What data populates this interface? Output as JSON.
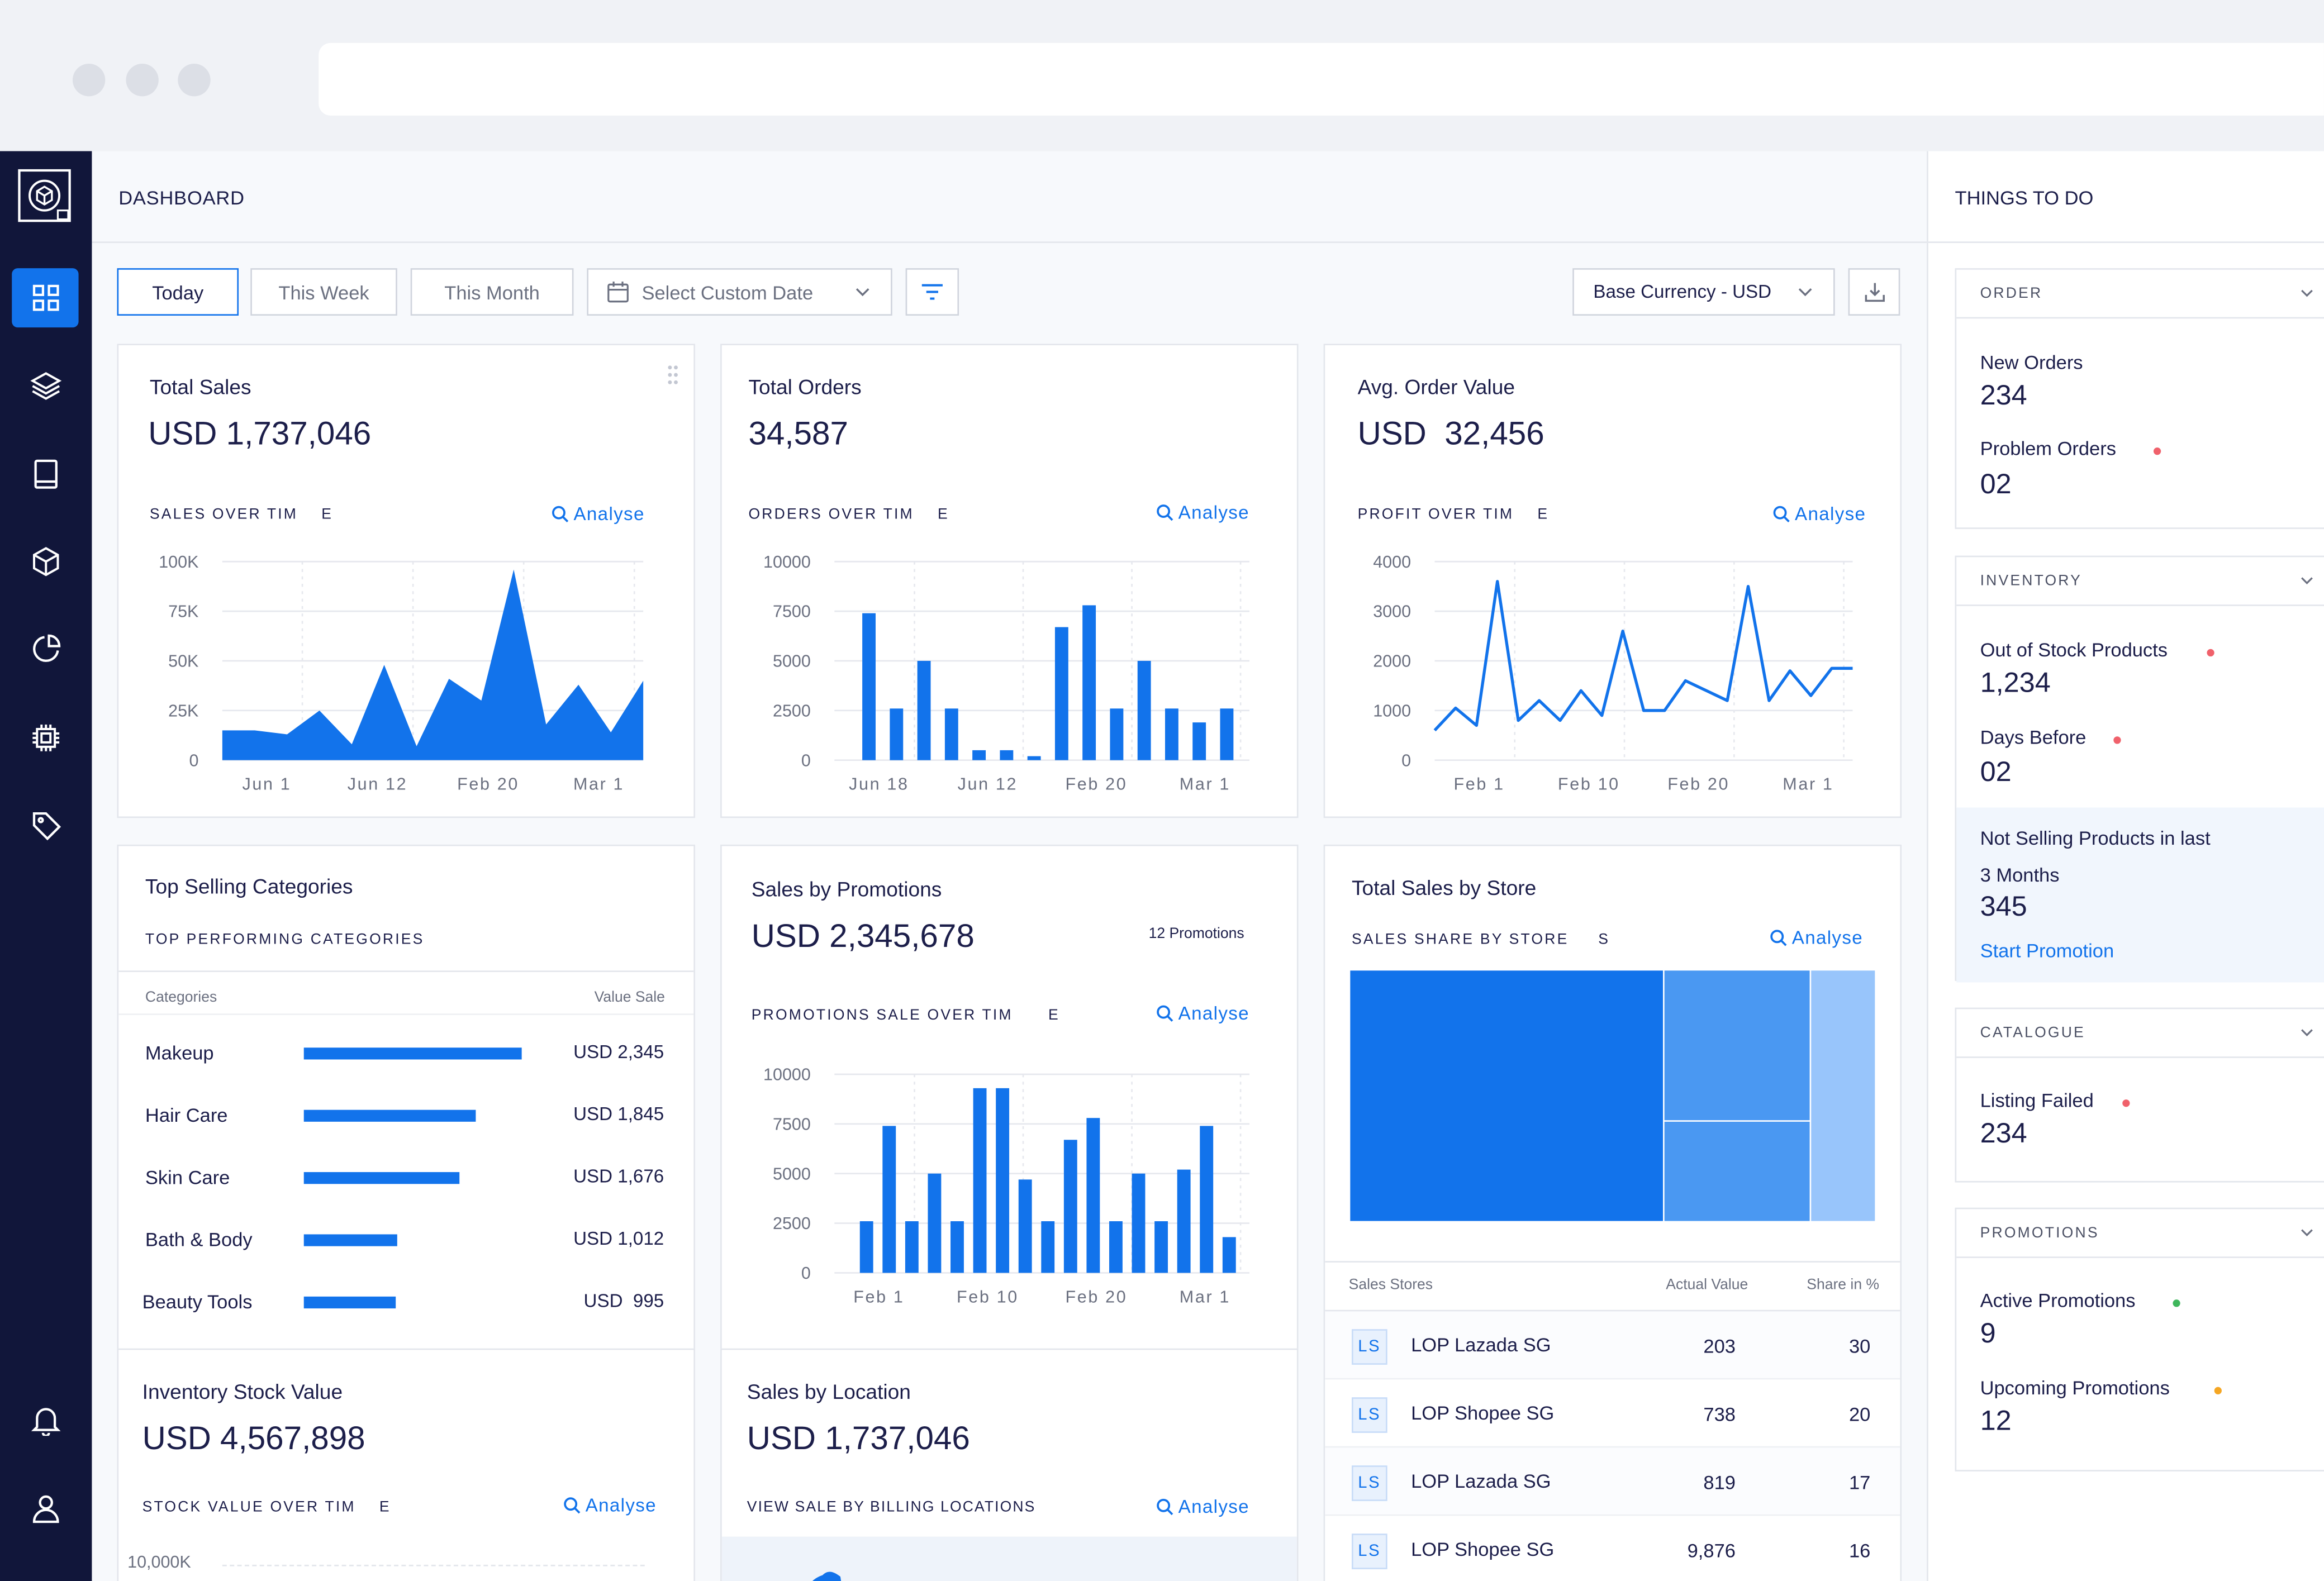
{
  "header": {
    "title": "DASHBOARD",
    "right_title": "THINGS TO DO"
  },
  "filters": {
    "today": "Today",
    "this_week": "This Week",
    "this_month": "This Month",
    "custom_date": "Select Custom Date",
    "currency": "Base Currency - USD"
  },
  "colors": {
    "accent": "#1273eb",
    "sidebar": "#11163a",
    "light_blue": "#4a98f2",
    "pale_blue": "#98c5fb"
  },
  "analyse_label": "Analyse",
  "total_sales": {
    "title": "Total Sales",
    "value": "USD 1,737,046",
    "caption": "SALES OVER TIM    E",
    "chart_data": {
      "type": "area",
      "y_ticks": [
        "100K",
        "75K",
        "50K",
        "25K",
        "0"
      ],
      "ylim": [
        0,
        100000
      ],
      "x_ticks": [
        "Jun 1",
        "Jun 12",
        "Feb 20",
        "Mar  1"
      ],
      "values": [
        15000,
        15000,
        13000,
        25000,
        8000,
        48000,
        7000,
        41000,
        30000,
        96000,
        18000,
        38000,
        14000,
        40000
      ]
    }
  },
  "total_orders": {
    "title": "Total Orders",
    "value": "34,587",
    "caption": "ORDERS OVER TIM    E",
    "chart_data": {
      "type": "bar",
      "y_ticks": [
        "10000",
        "7500",
        "5000",
        "2500",
        "0"
      ],
      "ylim": [
        0,
        10000
      ],
      "x_ticks": [
        "Jun 18",
        "Jun 12",
        "Feb 20",
        "Mar  1"
      ],
      "values": [
        7400,
        2600,
        5000,
        2600,
        500,
        500,
        200,
        6700,
        7800,
        2600,
        5000,
        2600,
        1900,
        2600
      ]
    }
  },
  "avg_order": {
    "title": "Avg. Order Value",
    "value": "USD  32,456",
    "caption": "PROFIT OVER TIM    E",
    "chart_data": {
      "type": "line",
      "y_ticks": [
        "4000",
        "3000",
        "2000",
        "1000",
        "0"
      ],
      "ylim": [
        0,
        4000
      ],
      "x_ticks": [
        "Feb 1",
        "Feb 10",
        "Feb 20",
        "Mar  1"
      ],
      "values": [
        600,
        1050,
        700,
        3600,
        800,
        1200,
        800,
        1400,
        900,
        2600,
        1000,
        1000,
        1600,
        1400,
        1200,
        3500,
        1200,
        1800,
        1300,
        1850,
        1850
      ]
    }
  },
  "top_categories": {
    "title": "Top Selling Categories",
    "caption": "TOP PERFORMING CATEGORIES",
    "col1": "Categories",
    "col2": "Value Sale",
    "rows": [
      {
        "name": "Makeup",
        "value": "USD 2,345",
        "amount": 2345
      },
      {
        "name": "Hair Care",
        "value": "USD 1,845",
        "amount": 1845
      },
      {
        "name": "Skin Care",
        "value": "USD 1,676",
        "amount": 1676
      },
      {
        "name": "Bath & Body",
        "value": "USD 1,012",
        "amount": 1012
      },
      {
        "name": "Beauty Tools",
        "value": "USD  995",
        "amount": 995
      }
    ]
  },
  "promotions_card": {
    "title": "Sales by Promotions",
    "value": "USD 2,345,678",
    "count": "12 Promotions",
    "caption": "PROMOTIONS SALE OVER TIM      E",
    "chart_data": {
      "type": "bar",
      "y_ticks": [
        "10000",
        "7500",
        "5000",
        "2500",
        "0"
      ],
      "ylim": [
        0,
        10000
      ],
      "x_ticks": [
        "Feb 1",
        "Feb 10",
        "Feb 20",
        "Mar  1"
      ],
      "values": [
        2600,
        7400,
        2600,
        5000,
        2600,
        9300,
        9300,
        4700,
        2600,
        6700,
        7800,
        2600,
        5000,
        2600,
        5200,
        7400,
        1800
      ]
    }
  },
  "sales_by_store": {
    "title": "Total Sales by Store",
    "caption": "SALES SHARE BY STORE     S",
    "col1": "Sales Stores",
    "col2": "Actual Value",
    "col3": "Share in %",
    "rows": [
      {
        "badge": "LS",
        "name": "LOP Lazada SG",
        "value": "203",
        "share": "30"
      },
      {
        "badge": "LS",
        "name": "LOP Shopee SG",
        "value": "738",
        "share": "20"
      },
      {
        "badge": "LS",
        "name": "LOP Lazada SG",
        "value": "819",
        "share": "17"
      },
      {
        "badge": "LS",
        "name": "LOP Shopee SG",
        "value": "9,876",
        "share": "16"
      }
    ]
  },
  "inventory_value": {
    "title": "Inventory Stock Value",
    "value": "USD 4,567,898",
    "caption": "STOCK VALUE OVER TIM    E",
    "y_top": "10,000K"
  },
  "sales_location": {
    "title": "Sales by Location",
    "value": "USD 1,737,046",
    "caption": "VIEW SALE BY BILLING LOCATIONS"
  },
  "todo": {
    "order": {
      "head": "ORDER",
      "items": [
        {
          "label": "New Orders",
          "value": "234"
        },
        {
          "label": "Problem Orders",
          "value": "02"
        }
      ]
    },
    "inventory": {
      "head": "INVENTORY",
      "items": [
        {
          "label": "Out of Stock Products",
          "value": "1,234"
        },
        {
          "label": "Days Before",
          "value": "02"
        }
      ],
      "not_selling_1": "Not Selling Products in last",
      "not_selling_2": "3 Months",
      "not_selling_value": "345",
      "start_promotion": "Start Promotion"
    },
    "catalogue": {
      "head": "CATALOGUE",
      "items": [
        {
          "label": "Listing Failed",
          "value": "234"
        }
      ]
    },
    "promotions": {
      "head": "PROMOTIONS",
      "items": [
        {
          "label": "Active Promotions",
          "value": "9"
        },
        {
          "label": "Upcoming Promotions",
          "value": "12"
        }
      ]
    }
  }
}
